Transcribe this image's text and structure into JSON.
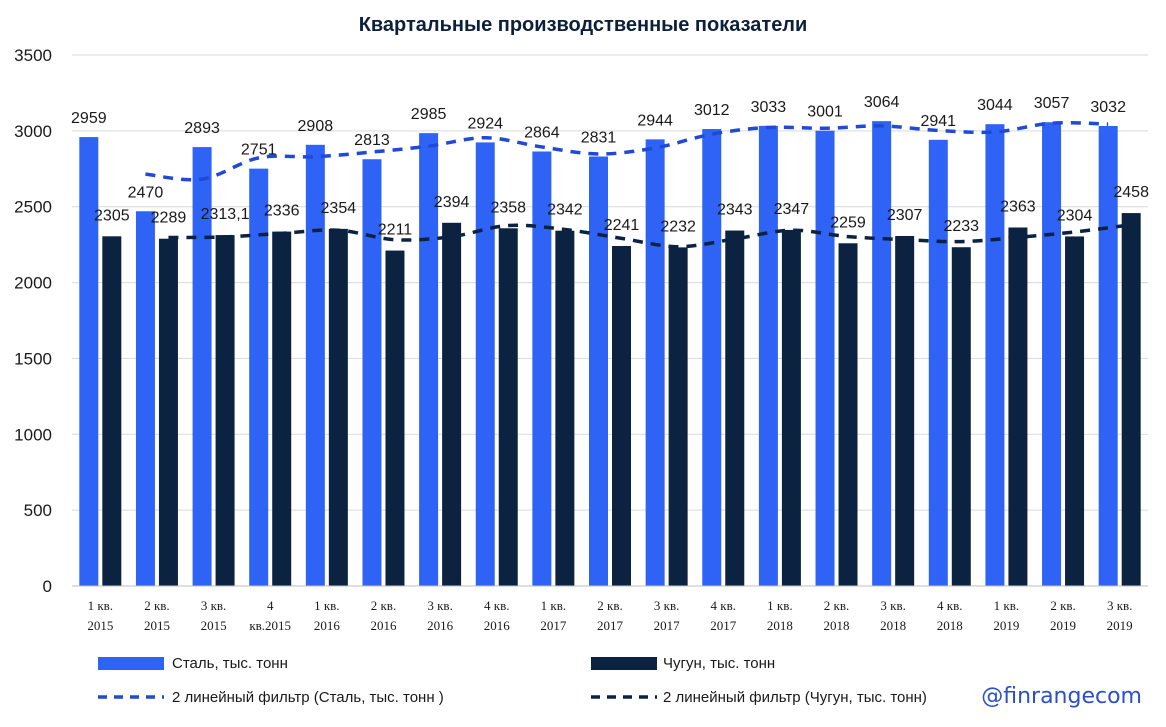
{
  "chart_data": {
    "type": "bar",
    "title": "Квартальные производственные показатели",
    "categories": [
      [
        "1 кв.",
        "2015"
      ],
      [
        "2 кв.",
        "2015"
      ],
      [
        "3 кв.",
        "2015"
      ],
      [
        "4",
        "кв.2015"
      ],
      [
        "1 кв.",
        "2016"
      ],
      [
        "2 кв.",
        "2016"
      ],
      [
        "3 кв.",
        "2016"
      ],
      [
        "4 кв.",
        "2016"
      ],
      [
        "1 кв.",
        "2017"
      ],
      [
        "2 кв.",
        "2017"
      ],
      [
        "3 кв.",
        "2017"
      ],
      [
        "4 кв.",
        "2017"
      ],
      [
        "1 кв.",
        "2018"
      ],
      [
        "2 кв.",
        "2018"
      ],
      [
        "3 кв.",
        "2018"
      ],
      [
        "4 кв.",
        "2018"
      ],
      [
        "1 кв.",
        "2019"
      ],
      [
        "2 кв.",
        "2019"
      ],
      [
        "3 кв.",
        "2019"
      ]
    ],
    "series": [
      {
        "name": "Сталь, тыс. тонн",
        "color": "#2f63f5",
        "values": [
          2959,
          2470,
          2893,
          2751,
          2908,
          2813,
          2985,
          2924,
          2864,
          2831,
          2944,
          3012,
          3033,
          3001,
          3064,
          2941,
          3044,
          3057,
          3032
        ],
        "labels": [
          "2959",
          "2470",
          "2893",
          "2751",
          "2908",
          "2813",
          "2985",
          "2924",
          "2864",
          "2831",
          "2944",
          "3012",
          "3033",
          "3001",
          "3064",
          "2941",
          "3044",
          "3057",
          "3032"
        ]
      },
      {
        "name": "Чугун, тыс. тонн",
        "color": "#0b2340",
        "values": [
          2305,
          2289,
          2313.1,
          2336,
          2354,
          2211,
          2394,
          2358,
          2342,
          2241,
          2232,
          2343,
          2347,
          2259,
          2307,
          2233,
          2363,
          2304,
          2458
        ],
        "labels": [
          "2305",
          "2289",
          "2313,1",
          "2336",
          "2354",
          "2211",
          "2394",
          "2358",
          "2342",
          "2241",
          "2232",
          "2343",
          "2347",
          "2259",
          "2307",
          "2233",
          "2363",
          "2304",
          "2458"
        ]
      }
    ],
    "trendlines": [
      {
        "name": "2 линейный фильтр (Сталь, тыс. тонн )",
        "series": 0,
        "period": 2,
        "color": "#1f49d6"
      },
      {
        "name": "2 линейный фильтр (Чугун, тыс. тонн)",
        "series": 1,
        "period": 2,
        "color": "#0b2340"
      }
    ],
    "ylim": [
      0,
      3500
    ],
    "yticks": [
      0,
      500,
      1000,
      1500,
      2000,
      2500,
      3000,
      3500
    ],
    "grid": true,
    "legend": "bottom",
    "xlabel": "",
    "ylabel": ""
  },
  "watermark": "@finrangecom"
}
